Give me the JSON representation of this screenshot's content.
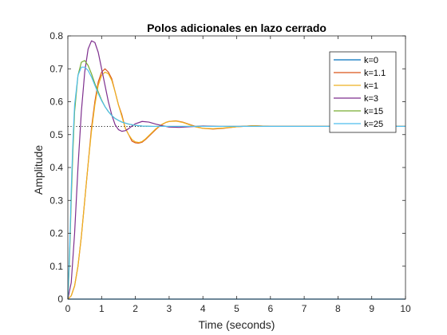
{
  "chart_data": {
    "type": "line",
    "title": "Polos adicionales en lazo cerrado",
    "xlabel": "Time (seconds)",
    "ylabel": "Amplitude",
    "xlim": [
      0,
      10
    ],
    "ylim": [
      0,
      0.8
    ],
    "xticks": [
      0,
      1,
      2,
      3,
      4,
      5,
      6,
      7,
      8,
      9,
      10
    ],
    "yticks": [
      0,
      0.1,
      0.2,
      0.3,
      0.4,
      0.5,
      0.6,
      0.7,
      0.8
    ],
    "grid": false,
    "legend_position": "top-right",
    "reference_line": {
      "y": 0.525,
      "style": "dotted",
      "color": "#000000"
    },
    "series": [
      {
        "name": "k=0",
        "color": "#0072BD",
        "x": [
          0,
          10
        ],
        "y": [
          0,
          0
        ]
      },
      {
        "name": "k=1.1",
        "color": "#D95319",
        "x": [
          0,
          0.1,
          0.2,
          0.3,
          0.4,
          0.5,
          0.6,
          0.7,
          0.8,
          0.9,
          1.0,
          1.1,
          1.2,
          1.3,
          1.4,
          1.5,
          1.6,
          1.7,
          1.8,
          1.9,
          2.0,
          2.1,
          2.2,
          2.3,
          2.4,
          2.5,
          2.6,
          2.7,
          2.8,
          2.9,
          3.0,
          3.2,
          3.4,
          3.6,
          3.8,
          4.0,
          4.3,
          4.6,
          5.0,
          5.5,
          6.0,
          7.0,
          8.0,
          9.0,
          10.0
        ],
        "y": [
          0,
          0.01,
          0.04,
          0.1,
          0.19,
          0.3,
          0.41,
          0.52,
          0.6,
          0.66,
          0.69,
          0.7,
          0.69,
          0.67,
          0.63,
          0.59,
          0.56,
          0.52,
          0.5,
          0.48,
          0.475,
          0.474,
          0.477,
          0.485,
          0.495,
          0.505,
          0.515,
          0.524,
          0.531,
          0.537,
          0.54,
          0.542,
          0.538,
          0.531,
          0.524,
          0.519,
          0.517,
          0.519,
          0.524,
          0.527,
          0.525,
          0.525,
          0.525,
          0.525,
          0.525
        ]
      },
      {
        "name": "k=1",
        "color": "#EDB120",
        "x": [
          0,
          0.1,
          0.2,
          0.3,
          0.4,
          0.5,
          0.6,
          0.7,
          0.8,
          0.9,
          1.0,
          1.1,
          1.2,
          1.3,
          1.4,
          1.5,
          1.6,
          1.7,
          1.8,
          1.9,
          2.0,
          2.1,
          2.2,
          2.3,
          2.4,
          2.5,
          2.6,
          2.7,
          2.8,
          2.9,
          3.0,
          3.2,
          3.4,
          3.6,
          3.8,
          4.0,
          4.3,
          4.6,
          5.0,
          5.5,
          6.0,
          7.0,
          8.0,
          9.0,
          10.0
        ],
        "y": [
          0,
          0.01,
          0.04,
          0.1,
          0.19,
          0.3,
          0.41,
          0.51,
          0.59,
          0.65,
          0.68,
          0.69,
          0.685,
          0.665,
          0.63,
          0.59,
          0.555,
          0.52,
          0.5,
          0.485,
          0.478,
          0.476,
          0.479,
          0.487,
          0.497,
          0.507,
          0.517,
          0.525,
          0.532,
          0.537,
          0.54,
          0.541,
          0.537,
          0.53,
          0.523,
          0.519,
          0.518,
          0.52,
          0.524,
          0.527,
          0.525,
          0.525,
          0.525,
          0.525,
          0.525
        ]
      },
      {
        "name": "k=3",
        "color": "#7E2F8E",
        "x": [
          0,
          0.1,
          0.2,
          0.3,
          0.4,
          0.5,
          0.6,
          0.7,
          0.8,
          0.9,
          1.0,
          1.1,
          1.2,
          1.3,
          1.4,
          1.5,
          1.6,
          1.7,
          1.8,
          1.9,
          2.0,
          2.2,
          2.4,
          2.6,
          2.8,
          3.0,
          3.3,
          3.6,
          4.0,
          4.5,
          5.0,
          6.0,
          7.0,
          8.0,
          9.0,
          10.0
        ],
        "y": [
          0,
          0.05,
          0.2,
          0.4,
          0.57,
          0.69,
          0.76,
          0.785,
          0.78,
          0.75,
          0.7,
          0.65,
          0.6,
          0.56,
          0.53,
          0.515,
          0.51,
          0.512,
          0.518,
          0.526,
          0.533,
          0.54,
          0.538,
          0.532,
          0.527,
          0.523,
          0.522,
          0.524,
          0.526,
          0.525,
          0.525,
          0.525,
          0.525,
          0.525,
          0.525,
          0.525
        ]
      },
      {
        "name": "k=15",
        "color": "#77AC30",
        "x": [
          0,
          0.05,
          0.1,
          0.15,
          0.2,
          0.3,
          0.4,
          0.5,
          0.6,
          0.7,
          0.8,
          0.9,
          1.0,
          1.1,
          1.2,
          1.3,
          1.4,
          1.5,
          1.6,
          1.8,
          2.0,
          2.2,
          2.5,
          3.0,
          3.5,
          4.0,
          5.0,
          6.0,
          7.0,
          8.0,
          9.0,
          10.0
        ],
        "y": [
          0,
          0.12,
          0.3,
          0.45,
          0.57,
          0.68,
          0.72,
          0.725,
          0.71,
          0.685,
          0.655,
          0.63,
          0.605,
          0.585,
          0.57,
          0.558,
          0.549,
          0.543,
          0.538,
          0.532,
          0.528,
          0.526,
          0.525,
          0.525,
          0.525,
          0.525,
          0.525,
          0.525,
          0.525,
          0.525,
          0.525,
          0.525
        ]
      },
      {
        "name": "k=25",
        "color": "#4DBEEE",
        "x": [
          0,
          0.05,
          0.1,
          0.15,
          0.2,
          0.3,
          0.4,
          0.5,
          0.6,
          0.7,
          0.8,
          0.9,
          1.0,
          1.1,
          1.2,
          1.3,
          1.4,
          1.5,
          1.6,
          1.8,
          2.0,
          2.2,
          2.5,
          3.0,
          3.5,
          4.0,
          5.0,
          6.0,
          7.0,
          8.0,
          9.0,
          10.0
        ],
        "y": [
          0,
          0.14,
          0.33,
          0.48,
          0.59,
          0.68,
          0.705,
          0.705,
          0.695,
          0.675,
          0.65,
          0.625,
          0.603,
          0.585,
          0.57,
          0.558,
          0.549,
          0.543,
          0.538,
          0.532,
          0.528,
          0.526,
          0.525,
          0.525,
          0.525,
          0.525,
          0.525,
          0.525,
          0.525,
          0.525,
          0.525,
          0.525
        ]
      }
    ]
  }
}
